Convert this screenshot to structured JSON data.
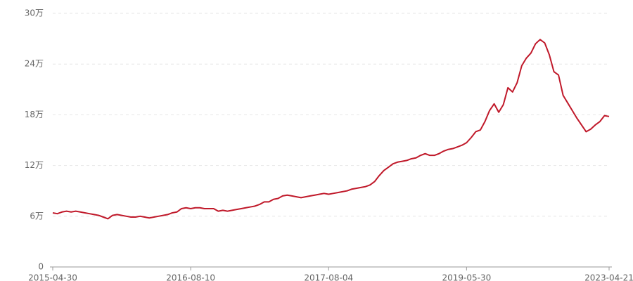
{
  "chart_data": {
    "type": "line",
    "categories": [
      "2015-04-30",
      null,
      null,
      null,
      null,
      null,
      null,
      null,
      null,
      null,
      null,
      null,
      null,
      null,
      null,
      null,
      null,
      null,
      null,
      null,
      null,
      null,
      null,
      null,
      null,
      null,
      null,
      null,
      null,
      null,
      "2016-08-10",
      null,
      null,
      null,
      null,
      null,
      null,
      null,
      null,
      null,
      null,
      null,
      null,
      null,
      null,
      null,
      null,
      null,
      null,
      null,
      null,
      null,
      null,
      null,
      null,
      null,
      null,
      null,
      null,
      null,
      "2017-08-04",
      null,
      null,
      null,
      null,
      null,
      null,
      null,
      null,
      null,
      null,
      null,
      null,
      null,
      null,
      null,
      null,
      null,
      null,
      null,
      null,
      null,
      null,
      null,
      null,
      null,
      null,
      null,
      null,
      null,
      "2019-05-30",
      null,
      null,
      null,
      null,
      null,
      null,
      null,
      null,
      null,
      null,
      null,
      null,
      null,
      null,
      null,
      null,
      null,
      null,
      null,
      null,
      null,
      null,
      null,
      null,
      null,
      null,
      null,
      null,
      null,
      null,
      "2023-04-21"
    ],
    "values": [
      6.4,
      6.3,
      6.5,
      6.6,
      6.5,
      6.6,
      6.5,
      6.4,
      6.3,
      6.2,
      6.1,
      5.9,
      5.7,
      6.1,
      6.2,
      6.1,
      6.0,
      5.9,
      5.9,
      6.0,
      5.9,
      5.8,
      5.9,
      6.0,
      6.1,
      6.2,
      6.4,
      6.5,
      6.9,
      7.0,
      6.9,
      7.0,
      7.0,
      6.9,
      6.9,
      6.9,
      6.6,
      6.7,
      6.6,
      6.7,
      6.8,
      6.9,
      7.0,
      7.1,
      7.2,
      7.4,
      7.7,
      7.7,
      8.0,
      8.1,
      8.4,
      8.5,
      8.4,
      8.3,
      8.2,
      8.3,
      8.4,
      8.5,
      8.6,
      8.7,
      8.6,
      8.7,
      8.8,
      8.9,
      9.0,
      9.2,
      9.3,
      9.4,
      9.5,
      9.7,
      10.1,
      10.8,
      11.4,
      11.8,
      12.2,
      12.4,
      12.5,
      12.6,
      12.8,
      12.9,
      13.2,
      13.4,
      13.2,
      13.2,
      13.4,
      13.7,
      13.9,
      14.0,
      14.2,
      14.4,
      14.7,
      15.3,
      16.0,
      16.2,
      17.2,
      18.5,
      19.3,
      18.3,
      19.2,
      21.2,
      20.7,
      21.8,
      23.8,
      24.7,
      25.3,
      26.4,
      26.9,
      26.5,
      25.1,
      23.1,
      22.7,
      20.3,
      19.4,
      18.5,
      17.6,
      16.8,
      16.0,
      16.3,
      16.8,
      17.2,
      17.9,
      17.8
    ],
    "color": "#c0192a",
    "ylim": [
      0,
      30
    ],
    "yticks": [
      0,
      {
        "value": 6,
        "label": "6万"
      },
      {
        "value": 12,
        "label": "12万"
      },
      {
        "value": 18,
        "label": "18万"
      },
      {
        "value": 24,
        "label": "24万"
      },
      {
        "value": 30,
        "label": "30万"
      }
    ],
    "grid": true
  }
}
